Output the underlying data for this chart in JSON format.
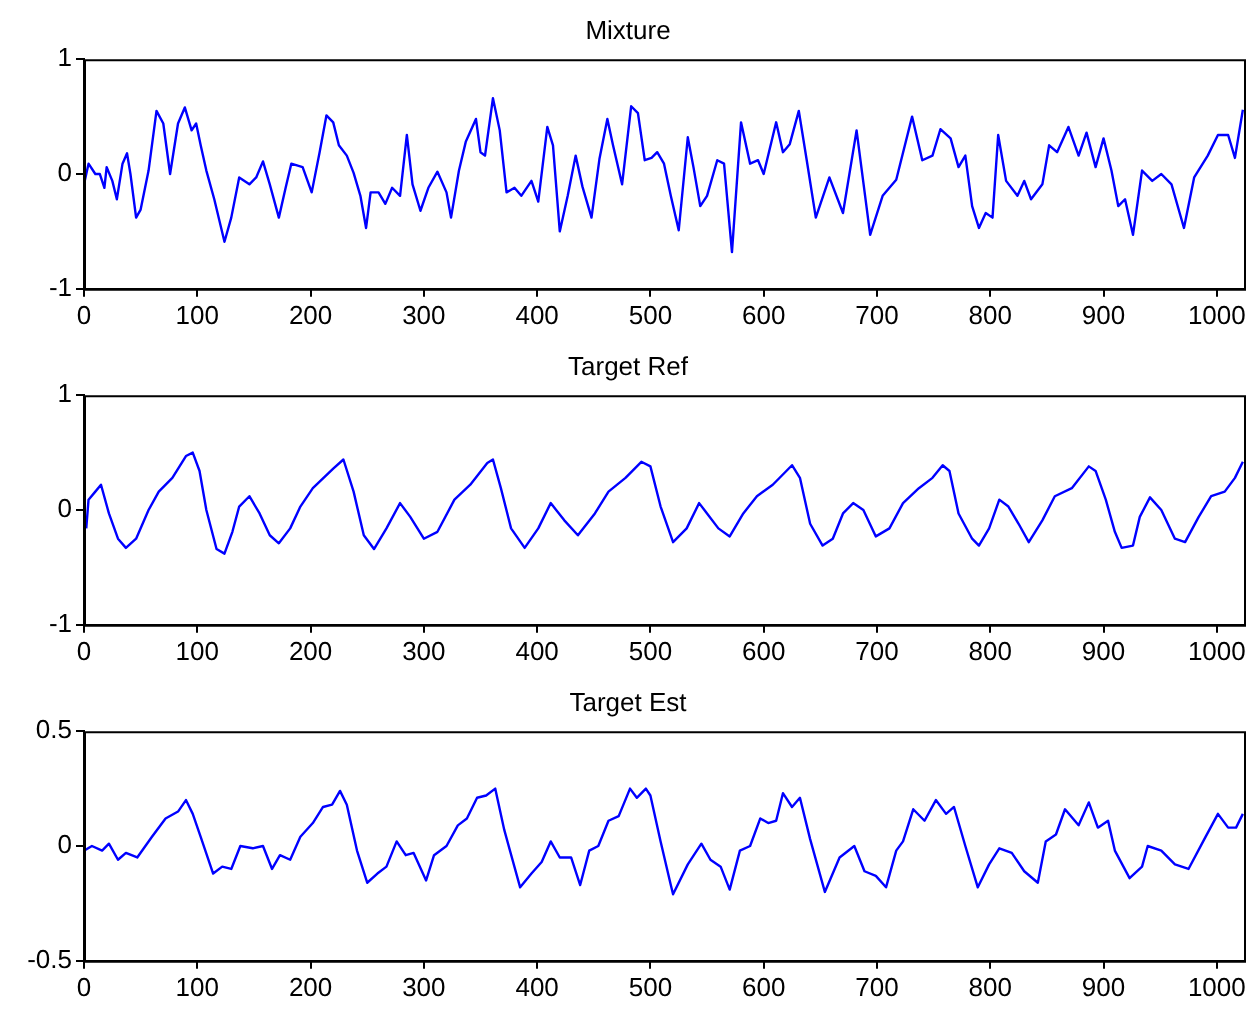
{
  "chart_data": [
    {
      "type": "line",
      "title": "Mixture",
      "color": "#0000ff",
      "xlim": [
        0,
        1024
      ],
      "xticks": [
        0,
        100,
        200,
        300,
        400,
        500,
        600,
        700,
        800,
        900,
        1000
      ],
      "ylim": [
        -1,
        1
      ],
      "yticks": [
        -1,
        0,
        1
      ],
      "grid": false,
      "x": [
        0,
        4,
        10,
        14,
        18,
        20,
        25,
        29,
        34,
        38,
        41,
        46,
        50,
        57,
        64,
        70,
        76,
        83,
        89,
        95,
        99,
        103,
        108,
        115,
        124,
        130,
        137,
        146,
        152,
        158,
        164,
        172,
        178,
        183,
        193,
        201,
        208,
        214,
        220,
        225,
        232,
        238,
        244,
        249,
        253,
        260,
        266,
        272,
        279,
        285,
        290,
        297,
        304,
        312,
        320,
        324,
        331,
        337,
        346,
        350,
        354,
        361,
        367,
        373,
        380,
        386,
        395,
        401,
        409,
        414,
        420,
        427,
        434,
        440,
        448,
        455,
        462,
        467,
        475,
        483,
        489,
        495,
        501,
        506,
        512,
        518,
        525,
        533,
        538,
        544,
        550,
        559,
        565,
        572,
        580,
        588,
        595,
        600,
        611,
        617,
        623,
        631,
        638,
        646,
        658,
        670,
        682,
        694,
        705,
        717,
        731,
        740,
        749,
        756,
        765,
        772,
        778,
        784,
        790,
        796,
        802,
        807,
        814,
        824,
        830,
        836,
        846,
        852,
        859,
        869,
        878,
        885,
        893,
        900,
        907,
        913,
        919,
        926,
        934,
        943,
        951,
        960,
        971,
        980,
        992,
        1001,
        1010,
        1016,
        1023
      ],
      "values": [
        -0.09,
        0.09,
        0,
        0,
        -0.12,
        0.06,
        -0.06,
        -0.22,
        0.09,
        0.18,
        0,
        -0.38,
        -0.31,
        0.03,
        0.55,
        0.44,
        0,
        0.44,
        0.58,
        0.38,
        0.44,
        0.25,
        0.03,
        -0.22,
        -0.59,
        -0.38,
        -0.03,
        -0.09,
        -0.03,
        0.11,
        -0.09,
        -0.38,
        -0.12,
        0.09,
        0.06,
        -0.16,
        0.19,
        0.51,
        0.45,
        0.25,
        0.16,
        0.01,
        -0.19,
        -0.47,
        -0.16,
        -0.16,
        -0.26,
        -0.12,
        -0.19,
        0.34,
        -0.09,
        -0.32,
        -0.12,
        0.02,
        -0.16,
        -0.38,
        0.03,
        0.28,
        0.48,
        0.19,
        0.16,
        0.66,
        0.38,
        -0.16,
        -0.12,
        -0.19,
        -0.06,
        -0.24,
        0.41,
        0.25,
        -0.5,
        -0.19,
        0.16,
        -0.11,
        -0.38,
        0.13,
        0.48,
        0.25,
        -0.09,
        0.59,
        0.53,
        0.12,
        0.14,
        0.19,
        0.09,
        -0.19,
        -0.49,
        0.32,
        0.06,
        -0.28,
        -0.19,
        0.12,
        0.09,
        -0.68,
        0.45,
        0.09,
        0.12,
        0,
        0.45,
        0.19,
        0.26,
        0.55,
        0.12,
        -0.38,
        -0.03,
        -0.34,
        0.38,
        -0.53,
        -0.19,
        -0.05,
        0.5,
        0.12,
        0.16,
        0.39,
        0.31,
        0.06,
        0.16,
        -0.28,
        -0.47,
        -0.34,
        -0.38,
        0.34,
        -0.06,
        -0.19,
        -0.06,
        -0.22,
        -0.09,
        0.25,
        0.19,
        0.41,
        0.16,
        0.36,
        0.06,
        0.31,
        0.03,
        -0.28,
        -0.22,
        -0.53,
        0.03,
        -0.06,
        0,
        -0.09,
        -0.47,
        -0.03,
        0.16,
        0.34,
        0.34,
        0.14,
        0.56
      ]
    },
    {
      "type": "line",
      "title": "Target Ref",
      "color": "#0000ff",
      "xlim": [
        0,
        1024
      ],
      "xticks": [
        0,
        100,
        200,
        300,
        400,
        500,
        600,
        700,
        800,
        900,
        1000
      ],
      "ylim": [
        -1,
        1
      ],
      "yticks": [
        -1,
        0,
        1
      ],
      "grid": false,
      "x": [
        2,
        4,
        10,
        15,
        22,
        30,
        37,
        46,
        57,
        66,
        78,
        90,
        96,
        102,
        108,
        117,
        124,
        131,
        137,
        146,
        155,
        164,
        172,
        182,
        191,
        202,
        220,
        229,
        238,
        247,
        256,
        267,
        279,
        288,
        300,
        312,
        327,
        341,
        356,
        361,
        368,
        377,
        389,
        401,
        412,
        424,
        436,
        451,
        463,
        478,
        492,
        500,
        509,
        520,
        532,
        543,
        550,
        560,
        570,
        582,
        594,
        608,
        620,
        625,
        632,
        641,
        652,
        661,
        670,
        679,
        688,
        699,
        711,
        723,
        737,
        749,
        758,
        764,
        772,
        784,
        790,
        799,
        808,
        816,
        825,
        834,
        846,
        857,
        872,
        887,
        893,
        902,
        910,
        916,
        926,
        932,
        941,
        951,
        963,
        972,
        984,
        995,
        1007,
        1016,
        1023
      ],
      "values": [
        -0.16,
        0.09,
        0.16,
        0.22,
        -0.03,
        -0.25,
        -0.33,
        -0.25,
        0,
        0.16,
        0.28,
        0.47,
        0.5,
        0.34,
        0,
        -0.34,
        -0.38,
        -0.19,
        0.03,
        0.12,
        -0.03,
        -0.22,
        -0.29,
        -0.16,
        0.03,
        0.19,
        0.36,
        0.44,
        0.16,
        -0.22,
        -0.34,
        -0.16,
        0.06,
        -0.06,
        -0.25,
        -0.19,
        0.09,
        0.22,
        0.41,
        0.44,
        0.19,
        -0.16,
        -0.33,
        -0.16,
        0.06,
        -0.09,
        -0.22,
        -0.03,
        0.16,
        0.28,
        0.42,
        0.38,
        0.03,
        -0.28,
        -0.16,
        0.06,
        -0.03,
        -0.16,
        -0.23,
        -0.03,
        0.12,
        0.22,
        0.34,
        0.39,
        0.28,
        -0.12,
        -0.31,
        -0.25,
        -0.03,
        0.06,
        0,
        -0.23,
        -0.16,
        0.06,
        0.19,
        0.28,
        0.39,
        0.34,
        -0.03,
        -0.25,
        -0.31,
        -0.16,
        0.09,
        0.03,
        -0.12,
        -0.28,
        -0.09,
        0.12,
        0.19,
        0.38,
        0.34,
        0.09,
        -0.19,
        -0.33,
        -0.31,
        -0.06,
        0.11,
        0,
        -0.25,
        -0.28,
        -0.06,
        0.12,
        0.16,
        0.28,
        0.42
      ]
    },
    {
      "type": "line",
      "title": "Target Est",
      "color": "#0000ff",
      "xlim": [
        0,
        1024
      ],
      "xticks": [
        0,
        100,
        200,
        300,
        400,
        500,
        600,
        700,
        800,
        900,
        1000
      ],
      "ylim": [
        -0.5,
        0.5
      ],
      "yticks": [
        -0.5,
        0,
        0.5
      ],
      "grid": false,
      "x": [
        0,
        7,
        16,
        22,
        30,
        37,
        47,
        60,
        72,
        83,
        90,
        96,
        103,
        114,
        122,
        130,
        138,
        149,
        158,
        166,
        173,
        182,
        191,
        202,
        211,
        219,
        226,
        232,
        241,
        250,
        259,
        267,
        276,
        284,
        291,
        302,
        309,
        320,
        330,
        338,
        347,
        355,
        363,
        371,
        385,
        395,
        404,
        412,
        420,
        430,
        438,
        446,
        454,
        463,
        472,
        482,
        488,
        496,
        500,
        509,
        518,
        520,
        533,
        545,
        553,
        562,
        570,
        579,
        588,
        597,
        604,
        611,
        617,
        625,
        632,
        641,
        654,
        667,
        680,
        689,
        699,
        708,
        717,
        723,
        732,
        742,
        752,
        761,
        768,
        778,
        789,
        799,
        808,
        819,
        830,
        842,
        849,
        858,
        866,
        878,
        887,
        895,
        904,
        910,
        923,
        934,
        939,
        951,
        963,
        975,
        989,
        1001,
        1010,
        1017,
        1023
      ],
      "values": [
        -0.02,
        0,
        -0.02,
        0.01,
        -0.06,
        -0.03,
        -0.05,
        0.04,
        0.12,
        0.15,
        0.2,
        0.14,
        0.04,
        -0.12,
        -0.09,
        -0.1,
        0,
        -0.01,
        0,
        -0.1,
        -0.04,
        -0.06,
        0.04,
        0.1,
        0.17,
        0.18,
        0.24,
        0.18,
        -0.02,
        -0.16,
        -0.12,
        -0.09,
        0.02,
        -0.04,
        -0.03,
        -0.15,
        -0.04,
        0,
        0.09,
        0.12,
        0.21,
        0.22,
        0.25,
        0.07,
        -0.18,
        -0.12,
        -0.07,
        0.02,
        -0.05,
        -0.05,
        -0.17,
        -0.02,
        0,
        0.11,
        0.13,
        0.25,
        0.21,
        0.25,
        0.22,
        0.02,
        -0.17,
        -0.21,
        -0.08,
        0.01,
        -0.06,
        -0.09,
        -0.19,
        -0.02,
        0,
        0.12,
        0.1,
        0.11,
        0.23,
        0.17,
        0.21,
        0.03,
        -0.2,
        -0.05,
        0,
        -0.11,
        -0.13,
        -0.18,
        -0.02,
        0.02,
        0.16,
        0.11,
        0.2,
        0.14,
        0.17,
        0,
        -0.18,
        -0.08,
        -0.01,
        -0.03,
        -0.11,
        -0.16,
        0.02,
        0.05,
        0.16,
        0.09,
        0.19,
        0.08,
        0.11,
        -0.02,
        -0.14,
        -0.09,
        0,
        -0.02,
        -0.08,
        -0.1,
        0.03,
        0.14,
        0.08,
        0.08,
        0.14
      ]
    }
  ]
}
